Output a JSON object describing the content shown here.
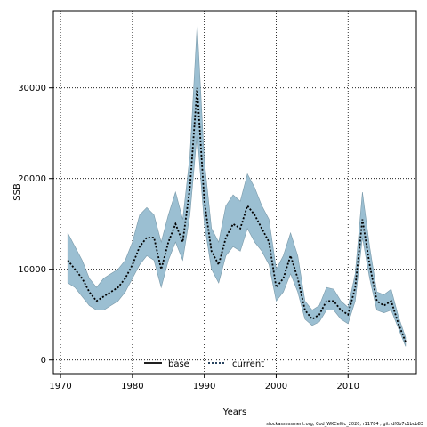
{
  "chart_data": {
    "type": "line",
    "xlabel": "Years",
    "ylabel": "SSB",
    "xlim": [
      1969,
      2019.5
    ],
    "ylim": [
      -1500,
      38500
    ],
    "x_ticks": [
      1970,
      1980,
      1990,
      2000,
      2010
    ],
    "y_ticks": [
      0,
      10000,
      20000,
      30000
    ],
    "grid": true,
    "legend_position": "bottom-center",
    "x": [
      1971,
      1972,
      1973,
      1974,
      1975,
      1976,
      1977,
      1978,
      1979,
      1980,
      1981,
      1982,
      1983,
      1984,
      1985,
      1986,
      1987,
      1988,
      1989,
      1990,
      1991,
      1992,
      1993,
      1994,
      1995,
      1996,
      1997,
      1998,
      1999,
      2000,
      2001,
      2002,
      2003,
      2004,
      2005,
      2006,
      2007,
      2008,
      2009,
      2010,
      2011,
      2012,
      2013,
      2014,
      2015,
      2016,
      2017,
      2018
    ],
    "series": [
      {
        "name": "current",
        "style": "dotted",
        "color": "#000000",
        "values": [
          11000,
          10000,
          9000,
          7500,
          6500,
          7000,
          7500,
          8000,
          9000,
          10500,
          12500,
          13500,
          13500,
          10000,
          13000,
          15000,
          13000,
          19000,
          30000,
          17500,
          12000,
          10500,
          13500,
          15000,
          14500,
          17000,
          16000,
          14500,
          13000,
          8000,
          9000,
          11500,
          9000,
          5500,
          4500,
          5000,
          6500,
          6500,
          5500,
          5000,
          8000,
          15500,
          10500,
          6500,
          6000,
          6500,
          4000,
          2000
        ],
        "lower": [
          8500,
          8000,
          7000,
          6000,
          5500,
          5500,
          6000,
          6500,
          7500,
          9000,
          10500,
          11500,
          11000,
          8000,
          11000,
          13000,
          11000,
          16000,
          25000,
          15000,
          10000,
          8500,
          11500,
          12500,
          12000,
          14500,
          13000,
          12000,
          10500,
          6500,
          7500,
          9500,
          7500,
          4500,
          3800,
          4200,
          5500,
          5500,
          4500,
          4000,
          6500,
          13500,
          9000,
          5500,
          5200,
          5500,
          3500,
          1500
        ],
        "upper": [
          14000,
          12500,
          11000,
          9000,
          8000,
          9000,
          9500,
          10000,
          11000,
          13000,
          16000,
          16800,
          16000,
          13000,
          16000,
          18500,
          15500,
          22500,
          37000,
          22000,
          14500,
          13000,
          17000,
          18200,
          17500,
          20500,
          19000,
          17000,
          15500,
          10000,
          11500,
          14000,
          11500,
          6500,
          5500,
          6000,
          8000,
          7800,
          6500,
          5800,
          9500,
          18500,
          12500,
          7500,
          7200,
          7800,
          4800,
          2500
        ],
        "band_color": "#9bbfd2"
      }
    ],
    "legend": [
      {
        "label": "base",
        "style": "solid"
      },
      {
        "label": "current",
        "style": "dotted",
        "color": "#0b2a4a"
      }
    ],
    "footer": "stockassessment.org, Cod_WKCeltic_2020, r11784 , git: df0b7c1bcb83"
  }
}
